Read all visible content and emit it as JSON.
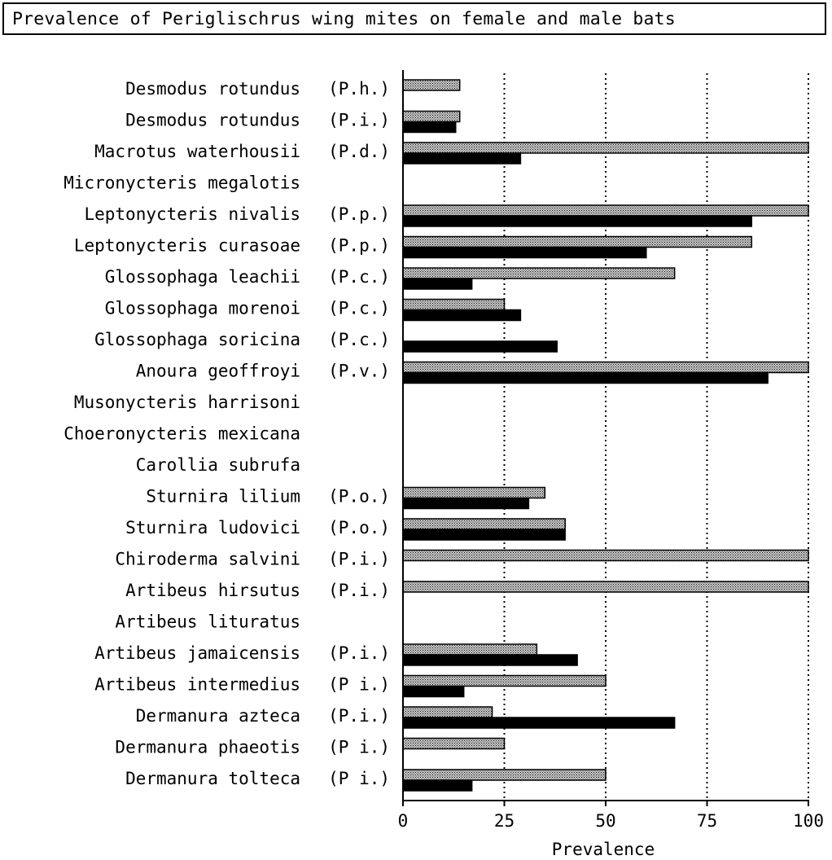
{
  "title": "Prevalence of Periglischrus wing mites on female and male bats",
  "chart_data": {
    "type": "bar",
    "orientation": "horizontal",
    "title": "Prevalence of Periglischrus wing mites on female and male bats",
    "xlabel": "Prevalence",
    "ylabel": "",
    "xlim": [
      0,
      100
    ],
    "xticks": [
      "0",
      "25",
      "50",
      "75",
      "100"
    ],
    "grid": "vertical dotted lines at 25, 50, 75, 100",
    "legend": "none",
    "colors": {
      "stippled_series": "#9a9a9a",
      "solid_series": "#000000"
    },
    "categories": [
      {
        "species": "Desmodus  rotundus",
        "mite": "(P.h.)"
      },
      {
        "species": "Desmodus  rotundus",
        "mite": "(P.i.)"
      },
      {
        "species": "Macrotus  waterhousii",
        "mite": "(P.d.)"
      },
      {
        "species": "Micronycteris megalotis",
        "mite": ""
      },
      {
        "species": "Leptonycteris nivalis",
        "mite": "(P.p.)"
      },
      {
        "species": "Leptonycteris  curasoae",
        "mite": "(P.p.)"
      },
      {
        "species": "Glossophaga leachii",
        "mite": "(P.c.)"
      },
      {
        "species": "Glossophaga morenoi",
        "mite": "(P.c.)"
      },
      {
        "species": "Glossophaga soricina",
        "mite": "(P.c.)"
      },
      {
        "species": "Anoura geoffroyi",
        "mite": "(P.v.)"
      },
      {
        "species": "Musonycteris harrisoni",
        "mite": ""
      },
      {
        "species": "Choeronycteris mexicana",
        "mite": ""
      },
      {
        "species": "Carollia subrufa",
        "mite": ""
      },
      {
        "species": "Sturnira lilium",
        "mite": "(P.o.)"
      },
      {
        "species": "Sturnira ludovici",
        "mite": "(P.o.)"
      },
      {
        "species": "Chiroderma salvini",
        "mite": "(P.i.)"
      },
      {
        "species": "Artibeus hirsutus",
        "mite": "(P.i.)"
      },
      {
        "species": "Artibeus lituratus",
        "mite": ""
      },
      {
        "species": "Artibeus jamaicensis",
        "mite": "(P.i.)"
      },
      {
        "species": "Artibeus intermedius",
        "mite": "(P i.)"
      },
      {
        "species": "Dermanura azteca",
        "mite": "(P.i.)"
      },
      {
        "species": "Dermanura phaeotis",
        "mite": "(P i.)"
      },
      {
        "species": "Dermanura tolteca",
        "mite": "(P i.)"
      }
    ],
    "series": [
      {
        "style": "stippled",
        "values": [
          14,
          14,
          100,
          0,
          100,
          86,
          67,
          25,
          0,
          100,
          0,
          0,
          0,
          35,
          40,
          100,
          100,
          0,
          33,
          50,
          22,
          25,
          50
        ]
      },
      {
        "style": "solid",
        "values": [
          0,
          13,
          29,
          0,
          86,
          60,
          17,
          29,
          38,
          90,
          0,
          0,
          0,
          31,
          40,
          0,
          0,
          0,
          43,
          15,
          67,
          0,
          17
        ]
      }
    ]
  }
}
